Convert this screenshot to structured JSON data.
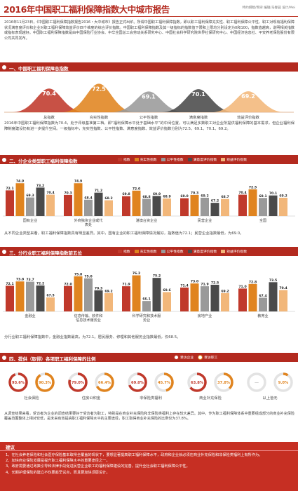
{
  "header": {
    "title": "2016年中国职工福利保障指数大中城市报告",
    "credit": "特约撰稿/熊崇   编辑/马春园   设计/Mei"
  },
  "intro": "2016年11月23日，《中国职工福利保障指数报告2016・大中城市》报告正式出炉。所谓中国职工福利保障指数，即以职工福利保障充实性、职工福利保障公平性、职工对现有福利保障状况满意度评价和企业对职工福利保障效益评价四个维度的综合评价指数。中国职工福利保障指数及其一级指标的指数值下限和上限均分别设定为0和100，指数值越高，说明相关指数或指标表现越好。中国职工福利保障指数是由中国保险行业协会、中华全国总工会劳动关系研究中心、中国社会科学研究院世界社保研究中心、中国经济信息社、平安养老保险股份有限公司共同发布。",
  "colors": {
    "brand": "#b32a1f",
    "series": [
      "#c0392b",
      "#e0841f",
      "#9a9a9a",
      "#4a4a4a",
      "#f2b77a"
    ]
  },
  "sections": {
    "s1": "一、中国职工福利保障总指数",
    "s2": "二、分企业类型职工福利保障指数",
    "s3": "三、分行业职工福利保障指数前五位",
    "s4": "四、提供（取得）各项职工福利保障的比例"
  },
  "legend_labels": [
    "指数",
    "充实性指数",
    "公平性指数",
    "满意度评价指数",
    "效益评价指数"
  ],
  "para1": "2016年中国职工福利保障指数为70.4，处于评级基准第三档，即“福利保障水平处于基础水平”的中间位置，可以满足多数职工对企业所提供福利保障的基本需求，但企业福利保障制度建设仍有进一步提升空间。一级指标中，充实性指数、公平性指数、满意度指数、效益评价指数分别为72.5、69.1、70.1、69.2。",
  "para2": "从不同企业类型来看，职工福利保障指数具有明显差异。其中，国有企业的职工福利保障情况最好，指数值为72.1；民营企业指数最低，为69.0。",
  "para3": "分行业职工福利保障指数中，金融业指数最高，为72.1。居民服务、修理和其他服务业指数最低，仅68.5。",
  "para4": "从调查结果来看，受访者为企业的调查结果要好于受访者为职工，特别是在商业补充保险和非保险类福利上存在较大差异。其中，作为职工福利保障体系中重要组成部分的商业补充保险覆盖范围整体上相对较低，是未来有效提高职工福利保障水平的主要途径，职工取得商业补充保险的比例仅为37.8%。",
  "pie_legend": {
    "enterprise": "受访企业",
    "staff": "受访职工"
  },
  "pies": [
    {
      "label": "社会保险",
      "enterprise": 93.6,
      "staff": 90.3,
      "enterprise_text": "93.6%",
      "staff_text": "90.3%"
    },
    {
      "label": "住房公积金",
      "enterprise": 79.0,
      "staff": 66.4,
      "enterprise_text": "79.0%",
      "staff_text": "66.4%"
    },
    {
      "label": "非保险类福利",
      "enterprise": 69.0,
      "staff": 45.7,
      "enterprise_text": "69.0%",
      "staff_text": "45.7%"
    },
    {
      "label": "商业补充保险",
      "enterprise": 63.8,
      "staff": 37.8,
      "enterprise_text": "63.8%",
      "staff_text": "37.8%"
    },
    {
      "label": "以上皆无",
      "enterprise": null,
      "staff": 9.0,
      "enterprise_text": "—",
      "staff_text": "9.0%"
    }
  ],
  "advice": {
    "title": "建议",
    "items": [
      "1、在社会养老保险和社会医疗保险基本取得全覆盖的现状下，要想显著提高职工福利保障水平，政府和企业就必须在商业补充保险和非保险类福利上有所作为。",
      "2、加快商业保险发展是提升职工福利保障水平的重要途径之一。",
      "3、政府需要通过政策引导和法律手段促进民营企业职工的福利保障建设的完善，提升全社会职工福利保障公平性。",
      "4、长期护理保险的建立不仅要趁早试点，而且要加快顶层设计。"
    ]
  },
  "chart_data": [
    {
      "type": "area",
      "title": "中国职工福利保障总指数",
      "categories": [
        "总指数",
        "充实性指数",
        "公平性指数",
        "满意度指数",
        "效益评价指数"
      ],
      "values": [
        70.4,
        72.5,
        69.1,
        70.1,
        69.2
      ]
    },
    {
      "type": "bar",
      "title": "分企业类型职工福利保障指数",
      "categories": [
        "国有企业",
        "外商独资企业或代表处",
        "港澳台资企业",
        "民营企业",
        "全国"
      ],
      "series": [
        {
          "name": "指数",
          "values": [
            72.1,
            70.3,
            69.8,
            69.0,
            70.4
          ]
        },
        {
          "name": "充实性指数",
          "values": [
            74.9,
            74.9,
            72.0,
            70.3,
            72.5
          ]
        },
        {
          "name": "公平性指数",
          "values": [
            69.3,
            68.4,
            68.8,
            69.2,
            69.1
          ]
        },
        {
          "name": "满意度评价指数",
          "values": [
            73.2,
            71.2,
            69.9,
            67.2,
            70.1
          ]
        },
        {
          "name": "效益评价指数",
          "values": [
            70.4,
            68.2,
            68.9,
            68.7,
            69.2
          ]
        }
      ]
    },
    {
      "type": "bar",
      "title": "分行业职工福利保障指数前五位",
      "categories": [
        "金融业",
        "信息传输、软件和信息技术服务业",
        "科学研究和技术服务业",
        "房地产业",
        "教育业"
      ],
      "series": [
        {
          "name": "指数",
          "values": [
            72.1,
            72.0,
            71.9,
            71.4,
            71.0
          ]
        },
        {
          "name": "充实性指数",
          "values": [
            73.8,
            75.8,
            76.2,
            73.0,
            72.8
          ]
        },
        {
          "name": "公平性指数",
          "values": [
            73.7,
            75.0,
            66.1,
            71.9,
            67.4
          ]
        },
        {
          "name": "满意度评价指数",
          "values": [
            72.2,
            70.3,
            75.2,
            72.5,
            73.5
          ]
        },
        {
          "name": "效益评价指数",
          "values": [
            67.5,
            69.2,
            69.6,
            69.2,
            70.4
          ]
        }
      ]
    }
  ]
}
